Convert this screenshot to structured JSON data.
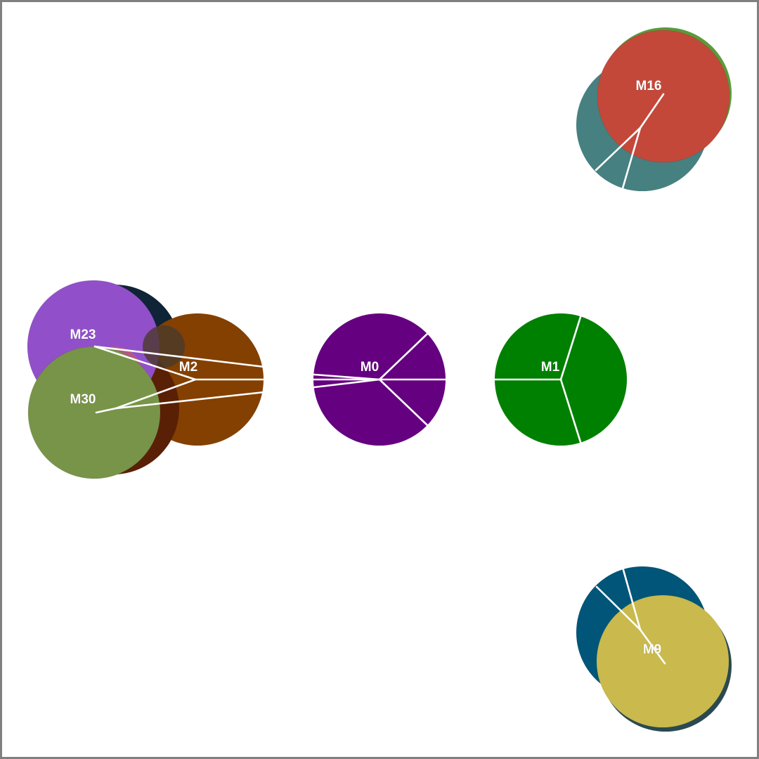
{
  "diagram": {
    "nodes": [
      {
        "id": "M16",
        "label": "M16",
        "color": "#c4483a",
        "visible_label": true
      },
      {
        "id": "M16_shadow",
        "label": "",
        "color": "#468080",
        "visible_label": false
      },
      {
        "id": "M16_rim",
        "label": "",
        "color": "#5a9a3a",
        "visible_label": false
      },
      {
        "id": "M23",
        "label": "M23",
        "color": "#9150ca",
        "visible_label": true
      },
      {
        "id": "M23_shadow",
        "label": "",
        "color": "#0f2436",
        "visible_label": false
      },
      {
        "id": "M2",
        "label": "M2",
        "color": "#844000",
        "visible_label": true
      },
      {
        "id": "M30",
        "label": "M30",
        "color": "#789448",
        "visible_label": true
      },
      {
        "id": "M30_shadow",
        "label": "",
        "color": "#5a2006",
        "visible_label": false
      },
      {
        "id": "M30_pink",
        "label": "",
        "color": "#b85a78",
        "visible_label": false
      },
      {
        "id": "M0",
        "label": "M0",
        "color": "#650080",
        "visible_label": true
      },
      {
        "id": "M1",
        "label": "M1",
        "color": "#008000",
        "visible_label": true
      },
      {
        "id": "M9",
        "label": "M9",
        "color": "#cab94c",
        "visible_label": true
      },
      {
        "id": "M9_shadow",
        "label": "",
        "color": "#005578",
        "visible_label": false
      }
    ]
  }
}
